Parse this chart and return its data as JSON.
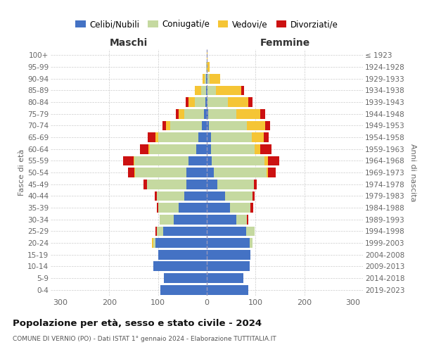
{
  "age_groups": [
    "0-4",
    "5-9",
    "10-14",
    "15-19",
    "20-24",
    "25-29",
    "30-34",
    "35-39",
    "40-44",
    "45-49",
    "50-54",
    "55-59",
    "60-64",
    "65-69",
    "70-74",
    "75-79",
    "80-84",
    "85-89",
    "90-94",
    "95-99",
    "100+"
  ],
  "birth_years": [
    "2019-2023",
    "2014-2018",
    "2009-2013",
    "2004-2008",
    "1999-2003",
    "1994-1998",
    "1989-1993",
    "1984-1988",
    "1979-1983",
    "1974-1978",
    "1969-1973",
    "1964-1968",
    "1959-1963",
    "1954-1958",
    "1949-1953",
    "1944-1948",
    "1939-1943",
    "1934-1938",
    "1929-1933",
    "1924-1928",
    "≤ 1923"
  ],
  "colors": {
    "celibi": "#4472c4",
    "coniugati": "#c5d9a0",
    "vedovi": "#f5c535",
    "divorziati": "#cc1111"
  },
  "maschi": {
    "celibi": [
      95,
      88,
      110,
      100,
      105,
      90,
      68,
      58,
      46,
      42,
      42,
      38,
      22,
      18,
      10,
      6,
      3,
      2,
      1,
      0,
      0
    ],
    "coniugati": [
      0,
      0,
      0,
      0,
      5,
      12,
      28,
      42,
      56,
      80,
      105,
      110,
      95,
      82,
      65,
      40,
      21,
      9,
      4,
      1,
      0
    ],
    "vedovi": [
      0,
      0,
      0,
      0,
      2,
      0,
      0,
      0,
      0,
      0,
      1,
      2,
      2,
      5,
      8,
      12,
      14,
      14,
      4,
      1,
      0
    ],
    "divorziati": [
      0,
      0,
      0,
      0,
      0,
      3,
      0,
      3,
      5,
      8,
      14,
      22,
      18,
      16,
      8,
      6,
      5,
      0,
      0,
      0,
      0
    ]
  },
  "femmine": {
    "celibi": [
      85,
      75,
      88,
      90,
      88,
      80,
      60,
      48,
      38,
      22,
      14,
      10,
      8,
      8,
      4,
      3,
      1,
      1,
      1,
      0,
      0
    ],
    "coniugati": [
      0,
      0,
      0,
      0,
      5,
      18,
      22,
      42,
      55,
      75,
      108,
      108,
      90,
      84,
      78,
      58,
      42,
      18,
      5,
      0,
      0
    ],
    "vedovi": [
      0,
      0,
      0,
      0,
      0,
      0,
      0,
      0,
      0,
      0,
      3,
      8,
      12,
      25,
      38,
      48,
      42,
      52,
      22,
      6,
      1
    ],
    "divorziati": [
      0,
      0,
      0,
      0,
      0,
      0,
      3,
      5,
      5,
      5,
      16,
      22,
      22,
      10,
      10,
      10,
      8,
      5,
      0,
      0,
      0
    ]
  },
  "xlim": 320,
  "title": "Popolazione per età, sesso e stato civile - 2024",
  "subtitle": "COMUNE DI VERNIO (PO) - Dati ISTAT 1° gennaio 2024 - Elaborazione TUTTITALIA.IT",
  "ylabel_left": "Fasce di età",
  "ylabel_right": "Anni di nascita",
  "xlabel_maschi": "Maschi",
  "xlabel_femmine": "Femmine",
  "legend_labels": [
    "Celibi/Nubili",
    "Coniugati/e",
    "Vedovi/e",
    "Divorziati/e"
  ],
  "bg_color": "#ffffff",
  "grid_color": "#cccccc",
  "bar_height": 0.82
}
